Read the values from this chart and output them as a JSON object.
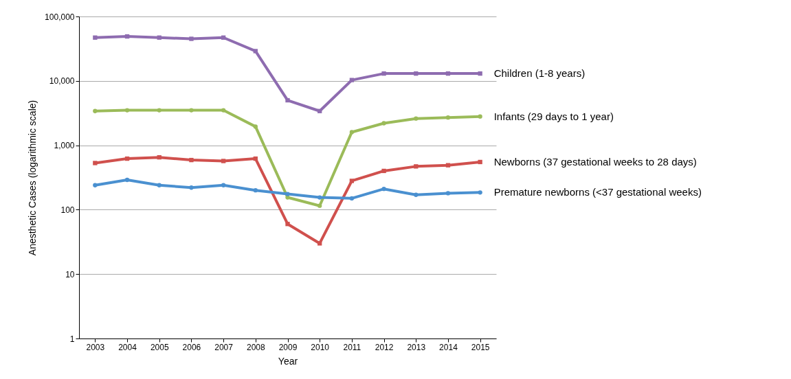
{
  "chart_data": {
    "type": "line",
    "xlabel": "Year",
    "ylabel": "Anesthetic Cases (logarithmic scale)",
    "categories": [
      "2003",
      "2004",
      "2005",
      "2006",
      "2007",
      "2008",
      "2009",
      "2010",
      "2011",
      "2012",
      "2013",
      "2014",
      "2015"
    ],
    "log": true,
    "ylim": [
      1,
      100000
    ],
    "yticks": [
      1,
      10,
      100,
      {
        "value": 1000,
        "label": "1,000"
      },
      {
        "value": 10000,
        "label": "10,000"
      },
      {
        "value": 100000,
        "label": "100,000"
      }
    ],
    "grid": "y",
    "legend": "right",
    "line_style": "solid",
    "series": [
      {
        "name": "Children (1-8 years)",
        "color": "#8e6cb0",
        "marker": "square",
        "values": [
          47000,
          49000,
          47000,
          45000,
          47000,
          29000,
          5000,
          3400,
          10300,
          13000,
          13000,
          13000,
          13000
        ]
      },
      {
        "name": "Infants (29 days to 1 year)",
        "color": "#9bbb59",
        "marker": "circle",
        "values": [
          3400,
          3500,
          3500,
          3500,
          3500,
          1950,
          155,
          115,
          1600,
          2200,
          2600,
          2700,
          2800
        ]
      },
      {
        "name": "Newborns (37 gestational weeks to 28 days)",
        "color": "#d0504d",
        "marker": "square",
        "values": [
          530,
          620,
          650,
          590,
          570,
          620,
          60,
          30,
          280,
          400,
          470,
          490,
          550
        ]
      },
      {
        "name": "Premature newborns (<37 gestational weeks)",
        "color": "#4a90d0",
        "marker": "circle",
        "values": [
          240,
          290,
          240,
          220,
          240,
          200,
          175,
          155,
          150,
          210,
          170,
          180,
          185
        ]
      }
    ]
  }
}
